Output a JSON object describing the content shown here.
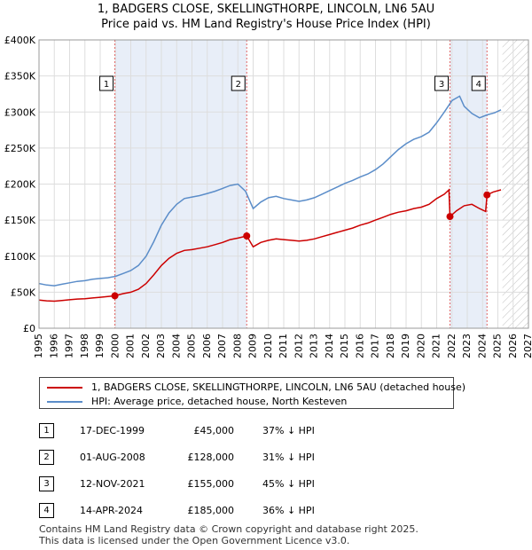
{
  "title_line1": "1, BADGERS CLOSE, SKELLINGTHORPE, LINCOLN, LN6 5AU",
  "title_line2": "Price paid vs. HM Land Registry's House Price Index (HPI)",
  "chart_data": {
    "type": "line",
    "title": "1, BADGERS CLOSE, SKELLINGTHORPE, LINCOLN, LN6 5AU - Price paid vs. HM Land Registry's House Price Index (HPI)",
    "xlabel": "",
    "ylabel": "",
    "xlim": [
      1995,
      2027
    ],
    "ylim": [
      0,
      400000
    ],
    "y_ticks": [
      0,
      50000,
      100000,
      150000,
      200000,
      250000,
      300000,
      350000,
      400000
    ],
    "y_tick_labels": [
      "£0",
      "£50K",
      "£100K",
      "£150K",
      "£200K",
      "£250K",
      "£300K",
      "£350K",
      "£400K"
    ],
    "x_ticks": [
      1995,
      1996,
      1997,
      1998,
      1999,
      2000,
      2001,
      2002,
      2003,
      2004,
      2005,
      2006,
      2007,
      2008,
      2009,
      2010,
      2011,
      2012,
      2013,
      2014,
      2015,
      2016,
      2017,
      2018,
      2019,
      2020,
      2021,
      2022,
      2023,
      2024,
      2025,
      2026,
      2027
    ],
    "x_tick_labels": [
      "1995",
      "1996",
      "1997",
      "1998",
      "1999",
      "2000",
      "2001",
      "2002",
      "2003",
      "2004",
      "2005",
      "2006",
      "2007",
      "2008",
      "2009",
      "2010",
      "2011",
      "2012",
      "2013",
      "2014",
      "2015",
      "2016",
      "2017",
      "2018",
      "2019",
      "2020",
      "2021",
      "2022",
      "2023",
      "2024",
      "2025",
      "2026",
      "2027"
    ],
    "grid": true,
    "future_hatch_from": 2025.3,
    "shaded_periods": [
      [
        1999.96,
        2008.58
      ],
      [
        2021.87,
        2024.29
      ]
    ],
    "series": [
      {
        "name": "1, BADGERS CLOSE, SKELLINGTHORPE, LINCOLN, LN6 5AU (detached house)",
        "color": "#cc0000",
        "x": [
          1995.0,
          1995.5,
          1996.0,
          1996.5,
          1997.0,
          1997.5,
          1998.0,
          1998.5,
          1999.0,
          1999.5,
          1999.96,
          2000.5,
          2001.0,
          2001.5,
          2002.0,
          2002.5,
          2003.0,
          2003.5,
          2004.0,
          2004.5,
          2005.0,
          2005.5,
          2006.0,
          2006.5,
          2007.0,
          2007.5,
          2008.0,
          2008.58,
          2009.0,
          2009.5,
          2010.0,
          2010.5,
          2011.0,
          2011.5,
          2012.0,
          2012.5,
          2013.0,
          2013.5,
          2014.0,
          2014.5,
          2015.0,
          2015.5,
          2016.0,
          2016.5,
          2017.0,
          2017.5,
          2018.0,
          2018.5,
          2019.0,
          2019.5,
          2020.0,
          2020.5,
          2021.0,
          2021.5,
          2021.8,
          2021.87,
          2022.3,
          2022.8,
          2023.3,
          2023.8,
          2024.2,
          2024.29,
          2024.7,
          2025.2
        ],
        "values": [
          39000,
          38000,
          37500,
          38500,
          39500,
          40500,
          41000,
          42000,
          43000,
          44000,
          45000,
          48000,
          50000,
          54000,
          62000,
          74000,
          87000,
          97000,
          104000,
          108000,
          109000,
          111000,
          113000,
          116000,
          119000,
          123000,
          125000,
          128000,
          113000,
          119000,
          122000,
          124000,
          123000,
          122000,
          121000,
          122000,
          124000,
          127000,
          130000,
          133000,
          136000,
          139000,
          143000,
          146000,
          150000,
          154000,
          158000,
          161000,
          163000,
          166000,
          168000,
          172000,
          180000,
          186000,
          192000,
          155000,
          163000,
          170000,
          172000,
          166000,
          162000,
          185000,
          189000,
          192000
        ]
      },
      {
        "name": "HPI: Average price, detached house, North Kesteven",
        "color": "#5b8dc9",
        "x": [
          1995.0,
          1995.5,
          1996.0,
          1996.5,
          1997.0,
          1997.5,
          1998.0,
          1998.5,
          1999.0,
          1999.5,
          2000.0,
          2000.5,
          2001.0,
          2001.5,
          2002.0,
          2002.5,
          2003.0,
          2003.5,
          2004.0,
          2004.5,
          2005.0,
          2005.5,
          2006.0,
          2006.5,
          2007.0,
          2007.5,
          2008.0,
          2008.5,
          2009.0,
          2009.5,
          2010.0,
          2010.5,
          2011.0,
          2011.5,
          2012.0,
          2012.5,
          2013.0,
          2013.5,
          2014.0,
          2014.5,
          2015.0,
          2015.5,
          2016.0,
          2016.5,
          2017.0,
          2017.5,
          2018.0,
          2018.5,
          2019.0,
          2019.5,
          2020.0,
          2020.5,
          2021.0,
          2021.5,
          2022.0,
          2022.5,
          2022.8,
          2023.3,
          2023.8,
          2024.3,
          2024.8,
          2025.2
        ],
        "values": [
          62000,
          60000,
          59000,
          61000,
          63000,
          65000,
          66000,
          68000,
          69000,
          70000,
          72000,
          76000,
          80000,
          87000,
          100000,
          120000,
          143000,
          160000,
          172000,
          180000,
          182000,
          184000,
          187000,
          190000,
          194000,
          198000,
          200000,
          190000,
          166000,
          175000,
          181000,
          183000,
          180000,
          178000,
          176000,
          178000,
          181000,
          186000,
          191000,
          196000,
          201000,
          205000,
          210000,
          214000,
          220000,
          228000,
          238000,
          248000,
          256000,
          262000,
          266000,
          272000,
          285000,
          300000,
          316000,
          322000,
          308000,
          298000,
          292000,
          296000,
          299000,
          303000
        ]
      }
    ],
    "sale_markers": [
      {
        "label": "1",
        "x": 1999.96,
        "value": 45000
      },
      {
        "label": "2",
        "x": 2008.58,
        "value": 128000
      },
      {
        "label": "3",
        "x": 2021.87,
        "value": 155000
      },
      {
        "label": "4",
        "x": 2024.29,
        "value": 185000
      }
    ]
  },
  "legend": [
    {
      "label": "1, BADGERS CLOSE, SKELLINGTHORPE, LINCOLN, LN6 5AU (detached house)",
      "color": "#cc0000"
    },
    {
      "label": "HPI: Average price, detached house, North Kesteven",
      "color": "#5b8dc9"
    }
  ],
  "sales": [
    {
      "num": "1",
      "date": "17-DEC-1999",
      "price": "£45,000",
      "hpi": "37% ↓ HPI"
    },
    {
      "num": "2",
      "date": "01-AUG-2008",
      "price": "£128,000",
      "hpi": "31% ↓ HPI"
    },
    {
      "num": "3",
      "date": "12-NOV-2021",
      "price": "£155,000",
      "hpi": "45% ↓ HPI"
    },
    {
      "num": "4",
      "date": "14-APR-2024",
      "price": "£185,000",
      "hpi": "36% ↓ HPI"
    }
  ],
  "footer": {
    "line1": "Contains HM Land Registry data © Crown copyright and database right 2025.",
    "line2": "This data is licensed under the Open Government Licence v3.0."
  }
}
